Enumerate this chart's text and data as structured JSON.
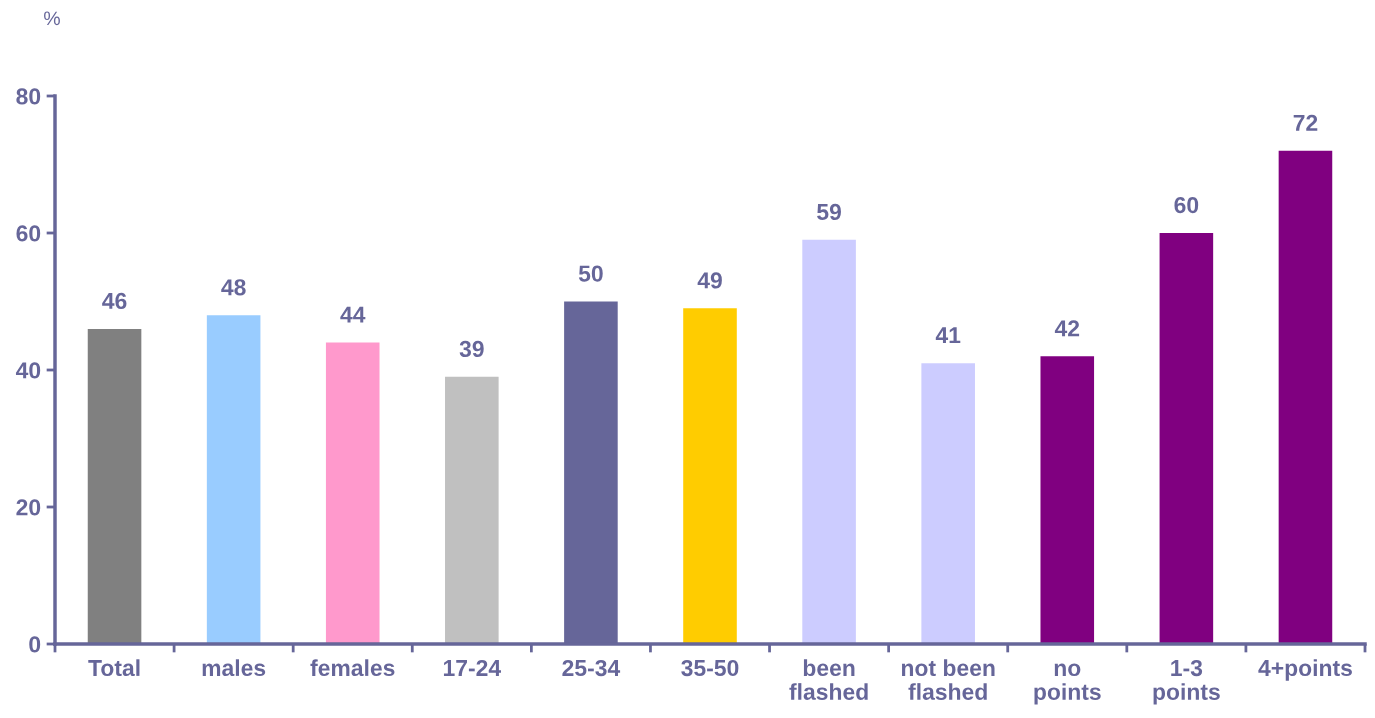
{
  "chart_data": {
    "type": "bar",
    "ylabel": "%",
    "categories": [
      "Total",
      "males",
      "females",
      "17-24",
      "25-34",
      "35-50",
      "been\nflashed",
      "not been\nflashed",
      "no\npoints",
      "1-3\npoints",
      "4+points"
    ],
    "values": [
      46,
      48,
      44,
      39,
      50,
      49,
      59,
      41,
      42,
      60,
      72
    ],
    "colors": [
      "#808080",
      "#99ccff",
      "#ff99cc",
      "#c0c0c0",
      "#666699",
      "#ffcc00",
      "#ccccff",
      "#ccccff",
      "#800080",
      "#800080",
      "#800080"
    ],
    "ylim": [
      0,
      80
    ],
    "yticks": [
      0,
      20,
      40,
      60,
      80
    ],
    "data_labels": true,
    "grid": false
  }
}
